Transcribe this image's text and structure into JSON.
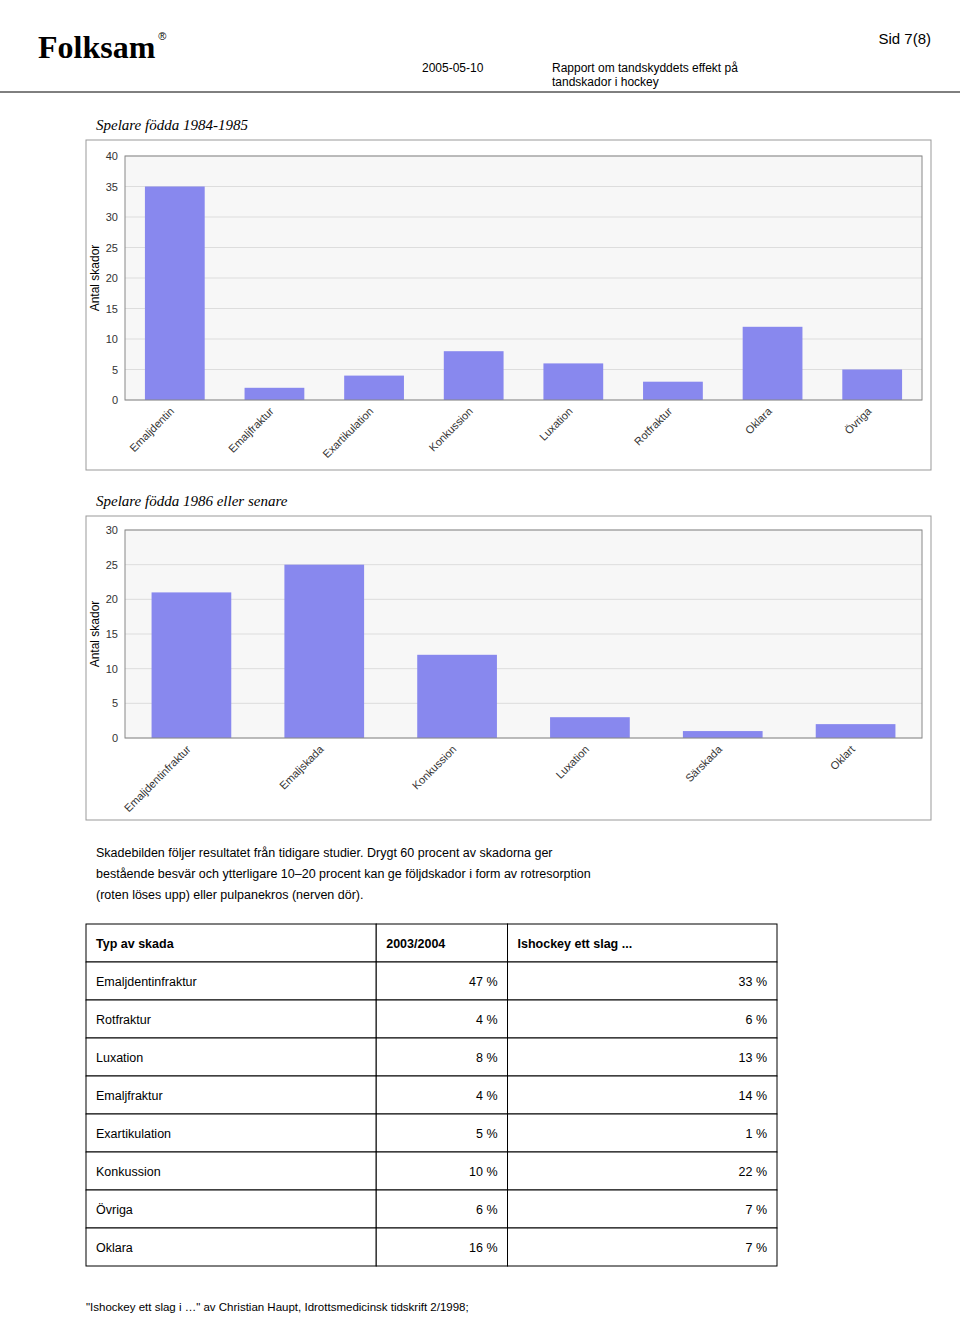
{
  "chart_data": [
    {
      "type": "bar",
      "title": "Spelare födda 1984-1985",
      "categories": [
        "Emaljdentin",
        "Emaljfraktur",
        "Exartikulation",
        "Konkussion",
        "Luxation",
        "Rotfraktur",
        "Oklara",
        "Övriga"
      ],
      "values": [
        35,
        2,
        4,
        8,
        6,
        3,
        12,
        5
      ],
      "color": "#8888EE",
      "ylabel": "Antal skador",
      "ylim": [
        0,
        40
      ],
      "yticks": [
        0,
        5,
        10,
        15,
        20,
        25,
        30,
        35,
        40
      ],
      "grid": true
    },
    {
      "type": "bar",
      "title": "Spelare födda 1986 eller senare",
      "categories": [
        "Emaljdentinfraktur",
        "Emaljskada",
        "Konkussion",
        "Luxation",
        "Särskada",
        "Oklart"
      ],
      "values": [
        21,
        25,
        12,
        3,
        1,
        2
      ],
      "color": "#8888EE",
      "ylabel": "Antal skador",
      "ylim": [
        0,
        30
      ],
      "yticks": [
        0,
        5,
        10,
        15,
        20,
        25,
        30
      ],
      "grid": true
    }
  ],
  "page": {
    "logo": "Folksam",
    "logo_mark": "®",
    "header_right": "Sid 7(8)",
    "date": "2005-05-10",
    "subtitle": "Rapport om tandskyddets effekt på\ntandskador i hockey",
    "paragraph": [
      "Skadebilden följer resultatet från tidigare studier. Drygt 60 procent av skadorna ger",
      "bestående besvär och ytterligare 10–20 procent kan ge följdskador i form av rotresorption",
      "(roten löses upp) eller pulpanekros (nerven dör)."
    ],
    "table": {
      "headers": [
        "Typ av skada",
        "2003/2004",
        "Ishockey ett slag ..."
      ],
      "rows": [
        [
          "Emaljdentinfraktur",
          "47 %",
          "33 %"
        ],
        [
          "Rotfraktur",
          "4 %",
          "6 %"
        ],
        [
          "Luxation",
          "8 %",
          "13 %"
        ],
        [
          "Emaljfraktur",
          "4 %",
          "14 %"
        ],
        [
          "Exartikulation",
          "5 %",
          "1 %"
        ],
        [
          "Konkussion",
          "10 %",
          "22 %"
        ],
        [
          "Övriga",
          "6 %",
          "7 %"
        ],
        [
          "Oklara",
          "16 %",
          "7 %"
        ]
      ],
      "footnote": "\"Ishockey ett slag i …\" av Christian Haupt, Idrottsmedicinsk tidskrift 2/1998;"
    }
  }
}
